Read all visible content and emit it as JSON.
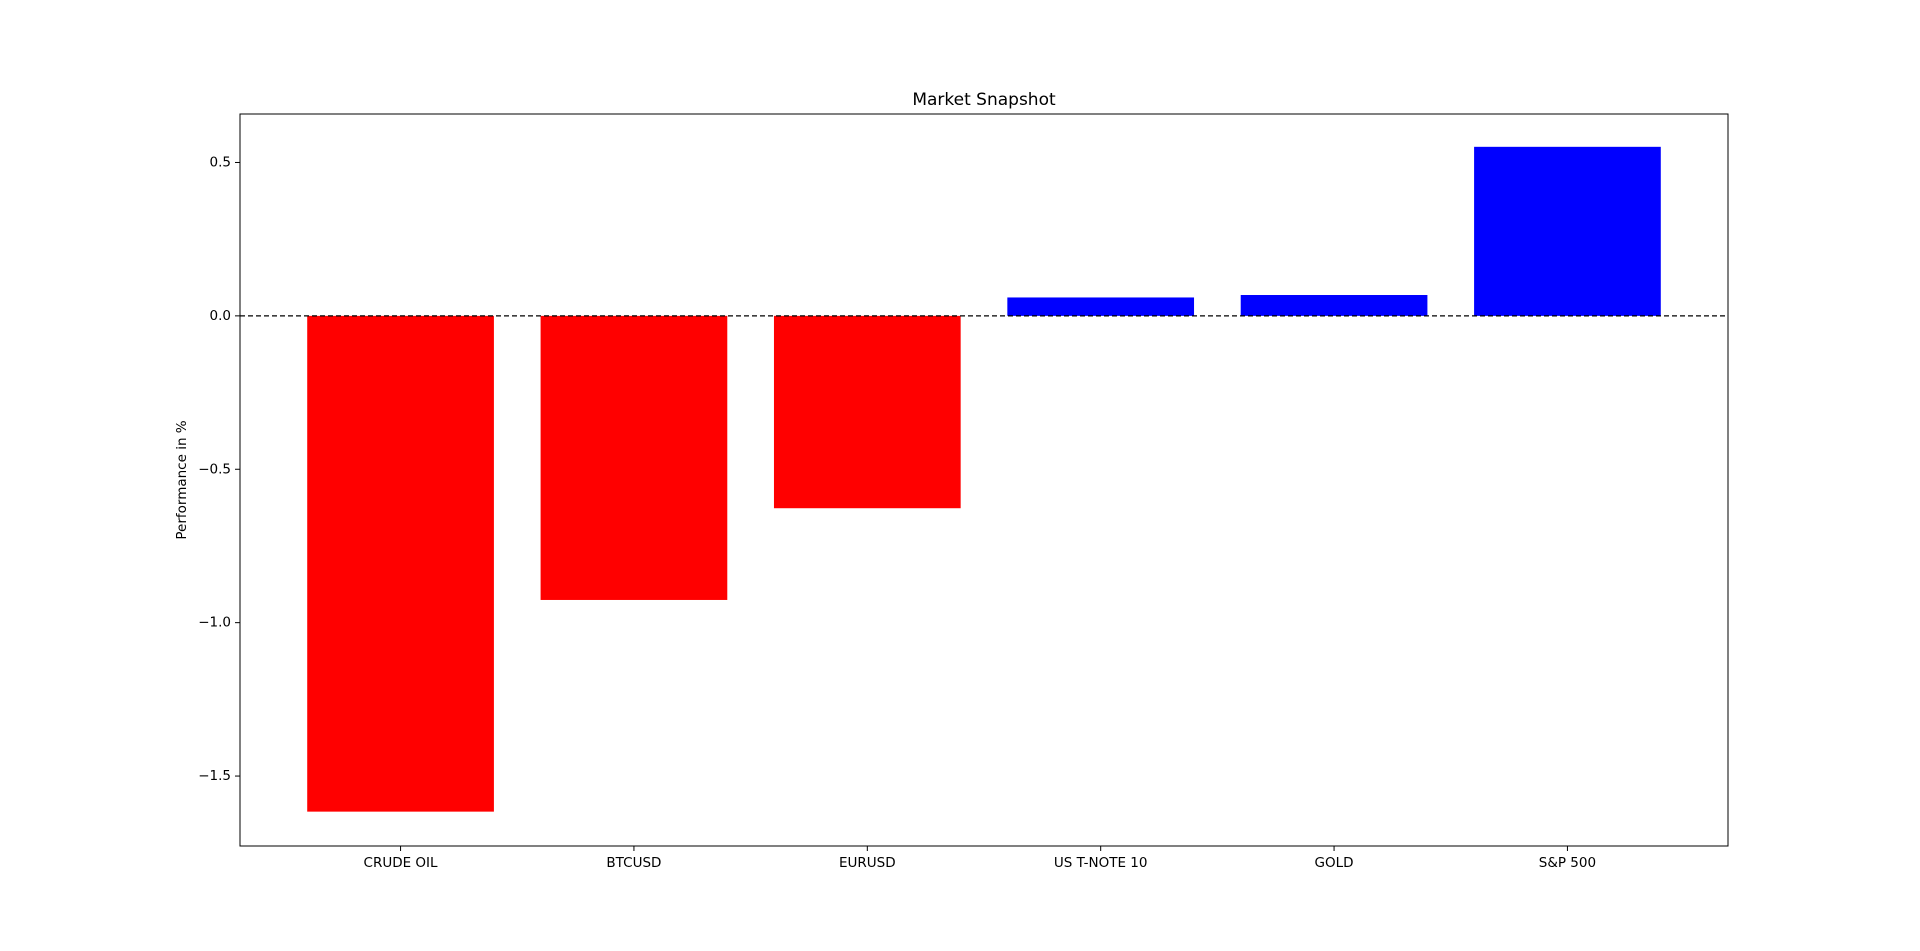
{
  "chart_data": {
    "type": "bar",
    "title": "Market Snapshot",
    "y_label": "Performance in %",
    "categories": [
      "CRUDE OIL",
      "BTCUSD",
      "EURUSD",
      "US T-NOTE 10",
      "GOLD",
      "S&P 500"
    ],
    "values": [
      -1.616,
      -0.926,
      -0.627,
      0.06,
      0.068,
      0.551
    ],
    "colors": [
      "#ff0000",
      "#ff0000",
      "#ff0000",
      "#0000ff",
      "#0000ff",
      "#0000ff"
    ],
    "ylim": [
      -1.728,
      0.658
    ],
    "yticks": [
      {
        "value": -1.5,
        "label": "−1.5"
      },
      {
        "value": -1.0,
        "label": "−1.0"
      },
      {
        "value": -0.5,
        "label": "−0.5"
      },
      {
        "value": 0,
        "label": "0.0"
      },
      0.5
    ],
    "reference_line": 0,
    "grid": false
  }
}
